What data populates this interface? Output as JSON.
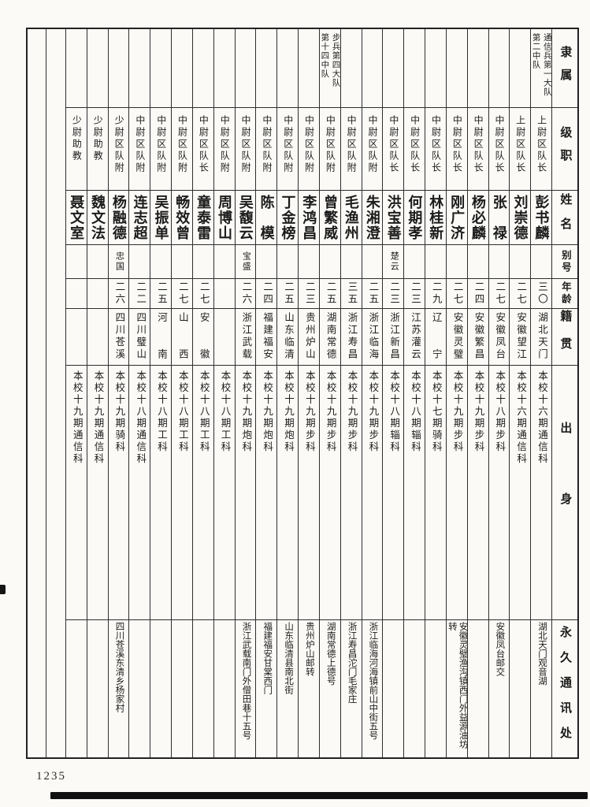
{
  "page": {
    "page_number": "1235",
    "row_headers": [
      "隶属",
      "级职",
      "姓名",
      "别号",
      "年龄",
      "籍贯",
      "出身",
      "永久通讯处"
    ]
  },
  "people": [
    {
      "affiliation": [
        "通信兵第一大队",
        "第二中队"
      ],
      "rank": "上尉区队长",
      "name": "彭书麟",
      "alias": "",
      "age": "三〇",
      "native": "湖北天门",
      "origin": "本校十六期通信科",
      "address": "湖北天门观音湖"
    },
    {
      "affiliation": [],
      "rank": "上尉区队长",
      "name": "刘崇德",
      "alias": "",
      "age": "二七",
      "native": "安徽望江",
      "origin": "本校十六期通信科",
      "address": ""
    },
    {
      "affiliation": [],
      "rank": "中尉区队长",
      "name": "张禄",
      "alias": "",
      "age": "二七",
      "native": "安徽凤台",
      "origin": "本校十八期步科",
      "address": "安徽凤台邮交"
    },
    {
      "affiliation": [],
      "rank": "中尉区队长",
      "name": "杨必麟",
      "alias": "",
      "age": "二四",
      "native": "安徽繁昌",
      "origin": "本校十九期步科",
      "address": ""
    },
    {
      "affiliation": [],
      "rank": "中尉区队长",
      "name": "刚广济",
      "alias": "",
      "age": "二七",
      "native": "安徽灵璧",
      "origin": "本校十九期步科",
      "address": "安徽灵璧渔沟镇西门外益源油坊转"
    },
    {
      "affiliation": [],
      "rank": "中尉区队长",
      "name": "林桂新",
      "alias": "",
      "age": "二九",
      "native": "辽宁",
      "origin": "本校十七期骑科",
      "address": ""
    },
    {
      "affiliation": [],
      "rank": "中尉区队长",
      "name": "何期孝",
      "alias": "",
      "age": "二三",
      "native": "江苏灌云",
      "origin": "本校十八期辎科",
      "address": ""
    },
    {
      "affiliation": [],
      "rank": "中尉区队长",
      "name": "洪宝善",
      "alias": "楚云",
      "age": "二三",
      "native": "浙江新昌",
      "origin": "本校十八期辎科",
      "address": ""
    },
    {
      "affiliation": [],
      "rank": "中尉区队附",
      "name": "朱湘澄",
      "alias": "",
      "age": "二五",
      "native": "浙江临海",
      "origin": "本校十九期步科",
      "address": "浙江临海河海镇前山中街五号"
    },
    {
      "affiliation": [],
      "rank": "中尉区队附",
      "name": "毛渔州",
      "alias": "",
      "age": "三五",
      "native": "浙江寿昌",
      "origin": "本校十九期步科",
      "address": "浙江寿昌沱门毛家庄"
    },
    {
      "affiliation": [
        "步兵第四大队",
        "第十四中队"
      ],
      "rank": "中尉区队附",
      "name": "曾繁威",
      "alias": "",
      "age": "二五",
      "native": "湖南常德",
      "origin": "本校十九期步科",
      "address": "湖南常德上德号"
    },
    {
      "affiliation": [],
      "rank": "中尉区队附",
      "name": "李鸿昌",
      "alias": "",
      "age": "二三",
      "native": "贵州炉山",
      "origin": "本校十九期步科",
      "address": "贵州炉山邮转"
    },
    {
      "affiliation": [],
      "rank": "中尉区队附",
      "name": "丁金榜",
      "alias": "",
      "age": "二五",
      "native": "山东临清",
      "origin": "本校十九期炮科",
      "address": "山东临清县南北街"
    },
    {
      "affiliation": [],
      "rank": "中尉区队附",
      "name": "陈模",
      "alias": "",
      "age": "二四",
      "native": "福建福安",
      "origin": "本校十九期炮科",
      "address": "福建福安甘棠西门"
    },
    {
      "affiliation": [],
      "rank": "中尉区队附",
      "name": "吴馥云",
      "alias": "宝盛",
      "age": "二六",
      "native": "浙江武载",
      "origin": "本校十九期炮科",
      "address": "浙江武载南门外僧田巷十五号"
    },
    {
      "affiliation": [],
      "rank": "中尉区队附",
      "name": "周博山",
      "alias": "",
      "age": "",
      "native": "",
      "origin": "本校十八期工科",
      "address": ""
    },
    {
      "affiliation": [],
      "rank": "中尉区队长",
      "name": "童泰雷",
      "alias": "",
      "age": "二七",
      "native": "安徽",
      "origin": "本校十八期工科",
      "address": ""
    },
    {
      "affiliation": [],
      "rank": "中尉区队附",
      "name": "畅效曾",
      "alias": "",
      "age": "二七",
      "native": "山西",
      "origin": "本校十八期工科",
      "address": ""
    },
    {
      "affiliation": [],
      "rank": "中尉区队附",
      "name": "吴振单",
      "alias": "",
      "age": "二五",
      "native": "河南",
      "origin": "本校十八期工科",
      "address": ""
    },
    {
      "affiliation": [],
      "rank": "中尉区队附",
      "name": "连志超",
      "alias": "",
      "age": "二二",
      "native": "四川璧山",
      "origin": "本校十八期通信科",
      "address": ""
    },
    {
      "affiliation": [],
      "rank": "少尉区队附",
      "name": "杨融德",
      "alias": "忠国",
      "age": "二六",
      "native": "四川苍溪",
      "origin": "本校十九期骑科",
      "address": "四川苍溪东清乡杨家村"
    },
    {
      "affiliation": [],
      "rank": "少尉助教",
      "name": "魏文法",
      "alias": "",
      "age": "",
      "native": "",
      "origin": "本校十九期通信科",
      "address": ""
    },
    {
      "affiliation": [],
      "rank": "少尉助教",
      "name": "聂文室",
      "alias": "",
      "age": "",
      "native": "",
      "origin": "本校十九期通信科",
      "address": ""
    }
  ]
}
